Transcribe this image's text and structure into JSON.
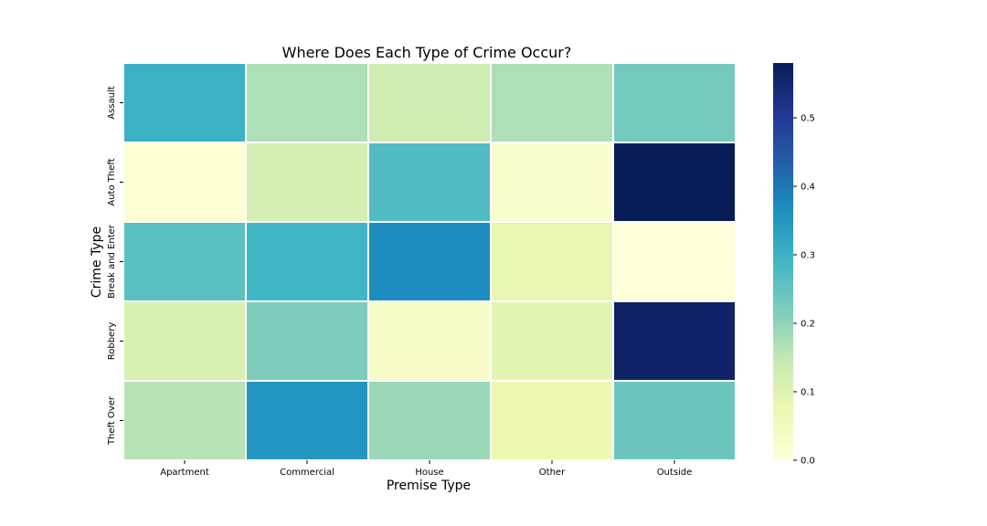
{
  "chart_data": {
    "type": "heatmap",
    "title": "Where Does Each Type of Crime Occur?",
    "xlabel": "Premise Type",
    "ylabel": "Crime Type",
    "x_categories": [
      "Apartment",
      "Commercial",
      "House",
      "Other",
      "Outside"
    ],
    "y_categories": [
      "Assault",
      "Auto Theft",
      "Break and Enter",
      "Robbery",
      "Theft Over"
    ],
    "values": [
      [
        0.3,
        0.17,
        0.13,
        0.17,
        0.23
      ],
      [
        0.01,
        0.12,
        0.27,
        0.02,
        0.58
      ],
      [
        0.26,
        0.29,
        0.37,
        0.08,
        0.0
      ],
      [
        0.11,
        0.22,
        0.03,
        0.09,
        0.56
      ],
      [
        0.16,
        0.35,
        0.19,
        0.07,
        0.24
      ]
    ],
    "colormap": "YlGnBu",
    "colorbar": {
      "min": 0.0,
      "max": 0.58,
      "ticks": [
        "0.0",
        "0.1",
        "0.2",
        "0.3",
        "0.4",
        "0.5"
      ]
    },
    "cell_gap_color": "#ffffff",
    "grid": false,
    "legend": "colorbar-right"
  }
}
